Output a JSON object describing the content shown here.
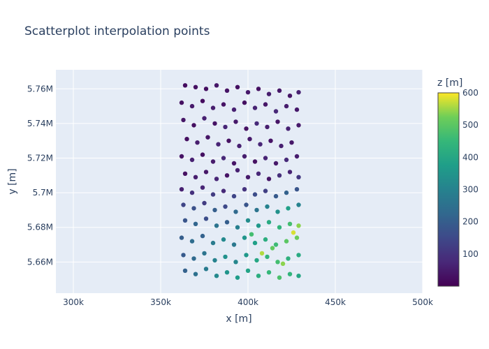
{
  "chart_data": {
    "type": "scatter",
    "title": "Scatterplot interpolation points",
    "xlabel": "x [m]",
    "ylabel": "y [m]",
    "xlim": [
      290000,
      500000
    ],
    "ylim": [
      5642000,
      5771000
    ],
    "x_ticks": [
      {
        "value": 300000,
        "label": "300k"
      },
      {
        "value": 350000,
        "label": "350k"
      },
      {
        "value": 400000,
        "label": "400k"
      },
      {
        "value": 450000,
        "label": "450k"
      },
      {
        "value": 500000,
        "label": "500k"
      }
    ],
    "y_ticks": [
      {
        "value": 5660000,
        "label": "5.66M"
      },
      {
        "value": 5680000,
        "label": "5.68M"
      },
      {
        "value": 5700000,
        "label": "5.7M"
      },
      {
        "value": 5720000,
        "label": "5.72M"
      },
      {
        "value": 5740000,
        "label": "5.74M"
      },
      {
        "value": 5760000,
        "label": "5.76M"
      }
    ],
    "grid": true,
    "colorscale": "Viridis",
    "colorbar": {
      "title": "z [m]",
      "range": [
        0,
        600
      ],
      "ticks": [
        {
          "value": 100,
          "label": "100"
        },
        {
          "value": 200,
          "label": "200"
        },
        {
          "value": 300,
          "label": "300"
        },
        {
          "value": 400,
          "label": "400"
        },
        {
          "value": 500,
          "label": "500"
        },
        {
          "value": 600,
          "label": "600"
        }
      ]
    },
    "points": [
      [
        364000,
        5762000,
        22
      ],
      [
        370000,
        5761000,
        30
      ],
      [
        376000,
        5760000,
        25
      ],
      [
        382000,
        5762000,
        40
      ],
      [
        388000,
        5759000,
        35
      ],
      [
        394000,
        5761000,
        28
      ],
      [
        400000,
        5758000,
        45
      ],
      [
        406000,
        5760000,
        30
      ],
      [
        412000,
        5757000,
        55
      ],
      [
        418000,
        5759000,
        42
      ],
      [
        424000,
        5756000,
        38
      ],
      [
        429000,
        5758000,
        60
      ],
      [
        362000,
        5752000,
        30
      ],
      [
        368000,
        5750000,
        48
      ],
      [
        374000,
        5753000,
        22
      ],
      [
        380000,
        5749000,
        55
      ],
      [
        386000,
        5751000,
        35
      ],
      [
        392000,
        5748000,
        60
      ],
      [
        398000,
        5752000,
        28
      ],
      [
        404000,
        5749000,
        65
      ],
      [
        410000,
        5751000,
        40
      ],
      [
        416000,
        5747000,
        75
      ],
      [
        422000,
        5750000,
        52
      ],
      [
        428000,
        5748000,
        45
      ],
      [
        363000,
        5742000,
        40
      ],
      [
        369000,
        5739000,
        28
      ],
      [
        375000,
        5743000,
        60
      ],
      [
        381000,
        5740000,
        35
      ],
      [
        387000,
        5738000,
        70
      ],
      [
        393000,
        5741000,
        45
      ],
      [
        399000,
        5737000,
        30
      ],
      [
        405000,
        5740000,
        80
      ],
      [
        411000,
        5738000,
        55
      ],
      [
        417000,
        5741000,
        38
      ],
      [
        423000,
        5737000,
        62
      ],
      [
        429000,
        5739000,
        48
      ],
      [
        365000,
        5731000,
        25
      ],
      [
        371000,
        5729000,
        55
      ],
      [
        377000,
        5732000,
        38
      ],
      [
        383000,
        5728000,
        68
      ],
      [
        389000,
        5730000,
        30
      ],
      [
        395000,
        5727000,
        60
      ],
      [
        401000,
        5731000,
        45
      ],
      [
        407000,
        5728000,
        72
      ],
      [
        413000,
        5730000,
        35
      ],
      [
        419000,
        5727000,
        58
      ],
      [
        425000,
        5729000,
        42
      ],
      [
        362000,
        5721000,
        35
      ],
      [
        368000,
        5719000,
        62
      ],
      [
        374000,
        5722000,
        28
      ],
      [
        380000,
        5718000,
        50
      ],
      [
        386000,
        5720000,
        75
      ],
      [
        392000,
        5717000,
        40
      ],
      [
        398000,
        5721000,
        55
      ],
      [
        404000,
        5718000,
        30
      ],
      [
        410000,
        5720000,
        68
      ],
      [
        416000,
        5717000,
        45
      ],
      [
        422000,
        5719000,
        80
      ],
      [
        428000,
        5721000,
        52
      ],
      [
        364000,
        5711000,
        30
      ],
      [
        370000,
        5709000,
        55
      ],
      [
        376000,
        5712000,
        42
      ],
      [
        382000,
        5708000,
        70
      ],
      [
        388000,
        5710000,
        35
      ],
      [
        394000,
        5713000,
        60
      ],
      [
        400000,
        5709000,
        48
      ],
      [
        406000,
        5711000,
        75
      ],
      [
        412000,
        5708000,
        38
      ],
      [
        418000,
        5710000,
        90
      ],
      [
        424000,
        5712000,
        65
      ],
      [
        429000,
        5709000,
        110
      ],
      [
        362000,
        5702000,
        60
      ],
      [
        368000,
        5700000,
        95
      ],
      [
        374000,
        5703000,
        70
      ],
      [
        380000,
        5699000,
        120
      ],
      [
        386000,
        5701000,
        80
      ],
      [
        392000,
        5698000,
        140
      ],
      [
        398000,
        5702000,
        100
      ],
      [
        404000,
        5699000,
        160
      ],
      [
        410000,
        5701000,
        130
      ],
      [
        416000,
        5698000,
        190
      ],
      [
        422000,
        5700000,
        210
      ],
      [
        428000,
        5702000,
        180
      ],
      [
        363000,
        5693000,
        140
      ],
      [
        369000,
        5691000,
        170
      ],
      [
        375000,
        5694000,
        120
      ],
      [
        381000,
        5690000,
        200
      ],
      [
        387000,
        5692000,
        150
      ],
      [
        393000,
        5689000,
        230
      ],
      [
        399000,
        5693000,
        180
      ],
      [
        405000,
        5690000,
        260
      ],
      [
        411000,
        5692000,
        300
      ],
      [
        417000,
        5689000,
        340
      ],
      [
        423000,
        5691000,
        380
      ],
      [
        429000,
        5693000,
        300
      ],
      [
        364000,
        5684000,
        180
      ],
      [
        370000,
        5682000,
        220
      ],
      [
        376000,
        5685000,
        160
      ],
      [
        382000,
        5681000,
        260
      ],
      [
        388000,
        5683000,
        200
      ],
      [
        394000,
        5680000,
        290
      ],
      [
        400000,
        5684000,
        330
      ],
      [
        406000,
        5681000,
        360
      ],
      [
        412000,
        5683000,
        410
      ],
      [
        418000,
        5680000,
        440
      ],
      [
        424000,
        5682000,
        470
      ],
      [
        429000,
        5681000,
        540
      ],
      [
        362000,
        5674000,
        200
      ],
      [
        368000,
        5672000,
        240
      ],
      [
        374000,
        5675000,
        210
      ],
      [
        380000,
        5671000,
        280
      ],
      [
        386000,
        5673000,
        320
      ],
      [
        392000,
        5670000,
        270
      ],
      [
        398000,
        5674000,
        350
      ],
      [
        404000,
        5671000,
        380
      ],
      [
        410000,
        5673000,
        420
      ],
      [
        416000,
        5670000,
        460
      ],
      [
        422000,
        5672000,
        500
      ],
      [
        428000,
        5674000,
        520
      ],
      [
        363000,
        5664000,
        190
      ],
      [
        369000,
        5662000,
        230
      ],
      [
        375000,
        5665000,
        260
      ],
      [
        381000,
        5661000,
        300
      ],
      [
        387000,
        5663000,
        340
      ],
      [
        393000,
        5660000,
        310
      ],
      [
        399000,
        5664000,
        360
      ],
      [
        405000,
        5661000,
        400
      ],
      [
        411000,
        5663000,
        440
      ],
      [
        417000,
        5660000,
        470
      ],
      [
        423000,
        5662000,
        430
      ],
      [
        429000,
        5664000,
        410
      ],
      [
        364000,
        5655000,
        210
      ],
      [
        370000,
        5653000,
        250
      ],
      [
        376000,
        5656000,
        280
      ],
      [
        382000,
        5652000,
        320
      ],
      [
        388000,
        5654000,
        350
      ],
      [
        394000,
        5651000,
        370
      ],
      [
        400000,
        5655000,
        390
      ],
      [
        406000,
        5652000,
        420
      ],
      [
        412000,
        5654000,
        450
      ],
      [
        418000,
        5651000,
        480
      ],
      [
        424000,
        5653000,
        440
      ],
      [
        429000,
        5652000,
        400
      ],
      [
        408000,
        5665000,
        560
      ],
      [
        420000,
        5659000,
        540
      ],
      [
        426000,
        5677000,
        580
      ],
      [
        414000,
        5668000,
        510
      ],
      [
        402000,
        5676000,
        470
      ]
    ]
  }
}
